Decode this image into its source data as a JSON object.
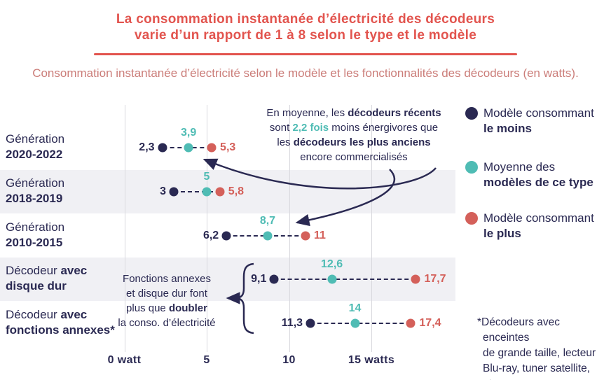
{
  "header": {
    "title_line1": "La consommation instantanée d’électricité des décodeurs",
    "title_line2": "varie d’un rapport de 1 à 8 selon le type et le modèle",
    "subtitle": "Consommation instantanée d’électricité selon le modèle et les fonctionnalités des décodeurs (en watts)."
  },
  "colors": {
    "navy": "#2a2952",
    "teal": "#4fbcb4",
    "red": "#d4605a",
    "title_red": "#e2544e",
    "subtitle_red": "#cb7d79",
    "band": "#f0f0f4",
    "grid": "#d9d9de"
  },
  "chart_data": {
    "type": "dot-range",
    "title": "Consommation instantanée d’électricité selon le modèle et les fonctionnalités des décodeurs (en watts).",
    "unit": "watts",
    "xlim": [
      0,
      21
    ],
    "grid": true,
    "legend_position": "right",
    "x_ticks": [
      {
        "v": 0,
        "label": "0 watt"
      },
      {
        "v": 5,
        "label": "5"
      },
      {
        "v": 10,
        "label": "10"
      },
      {
        "v": 15,
        "label": "15 watts"
      }
    ],
    "series": [
      {
        "key": "min",
        "name": "Modèle consommant le moins"
      },
      {
        "key": "avg",
        "name": "Moyenne des modèles de ce type"
      },
      {
        "key": "max",
        "name": "Modèle consommant le plus"
      }
    ],
    "rows": [
      {
        "category": "Génération 2020-2022",
        "band": false,
        "label_lines": [
          [
            {
              "t": "Génération"
            }
          ],
          [
            {
              "t": "2020-2022",
              "b": 1
            }
          ]
        ],
        "min": 2.3,
        "avg": 3.9,
        "max": 5.3,
        "labels": {
          "min": "2,3",
          "avg": "3,9",
          "max": "5,3"
        }
      },
      {
        "category": "Génération 2018-2019",
        "band": true,
        "label_lines": [
          [
            {
              "t": "Génération"
            }
          ],
          [
            {
              "t": "2018-2019",
              "b": 1
            }
          ]
        ],
        "min": 3,
        "avg": 5,
        "max": 5.8,
        "labels": {
          "min": "3",
          "avg": "5",
          "max": "5,8"
        }
      },
      {
        "category": "Génération 2010-2015",
        "band": false,
        "label_lines": [
          [
            {
              "t": "Génération"
            }
          ],
          [
            {
              "t": "2010-2015",
              "b": 1
            }
          ]
        ],
        "min": 6.2,
        "avg": 8.7,
        "max": 11,
        "labels": {
          "min": "6,2",
          "avg": "8,7",
          "max": "11"
        }
      },
      {
        "category": "Décodeur avec disque dur",
        "band": true,
        "label_lines": [
          [
            {
              "t": "Décodeur "
            },
            {
              "t": "avec",
              "b": 1
            }
          ],
          [
            {
              "t": "disque dur",
              "b": 1
            }
          ]
        ],
        "min": 9.1,
        "avg": 12.6,
        "max": 17.7,
        "labels": {
          "min": "9,1",
          "avg": "12,6",
          "max": "17,7"
        }
      },
      {
        "category": "Décodeur avec fonctions annexes*",
        "band": false,
        "label_lines": [
          [
            {
              "t": "Décodeur "
            },
            {
              "t": "avec",
              "b": 1
            }
          ],
          [
            {
              "t": "fonctions annexes*",
              "b": 1
            }
          ]
        ],
        "min": 11.3,
        "avg": 14,
        "max": 17.4,
        "labels": {
          "min": "11,3",
          "avg": "14",
          "max": "17,4"
        }
      }
    ]
  },
  "legend": {
    "items": [
      {
        "key": "min",
        "line1": "Modèle consommant",
        "line2": "le moins"
      },
      {
        "key": "avg",
        "line1": "Moyenne des",
        "line2": "modèles de ce type"
      },
      {
        "key": "max",
        "line1": "Modèle consommant",
        "line2": "le plus"
      }
    ]
  },
  "annotations": {
    "recent": {
      "lines": [
        [
          {
            "t": "En moyenne, les "
          },
          {
            "t": "décodeurs récents",
            "b": 1
          }
        ],
        [
          {
            "t": "sont "
          },
          {
            "t": "2,2 fois",
            "b": 1,
            "c": "teal"
          },
          {
            "t": " moins énergivores que"
          }
        ],
        [
          {
            "t": "les "
          },
          {
            "t": "décodeurs les plus anciens",
            "b": 1
          }
        ],
        [
          {
            "t": "encore commercialisés"
          }
        ]
      ]
    },
    "features": {
      "lines": [
        [
          {
            "t": "Fonctions annexes"
          }
        ],
        [
          {
            "t": "et disque dur font"
          }
        ],
        [
          {
            "t": "plus que "
          },
          {
            "t": "doubler",
            "b": 1
          }
        ],
        [
          {
            "t": "la conso. d’électricité"
          }
        ]
      ]
    }
  },
  "footnote": {
    "lines": [
      "*Décodeurs avec enceintes",
      "de grande taille, lecteur",
      "Blu-ray, tuner satellite, etc."
    ]
  }
}
